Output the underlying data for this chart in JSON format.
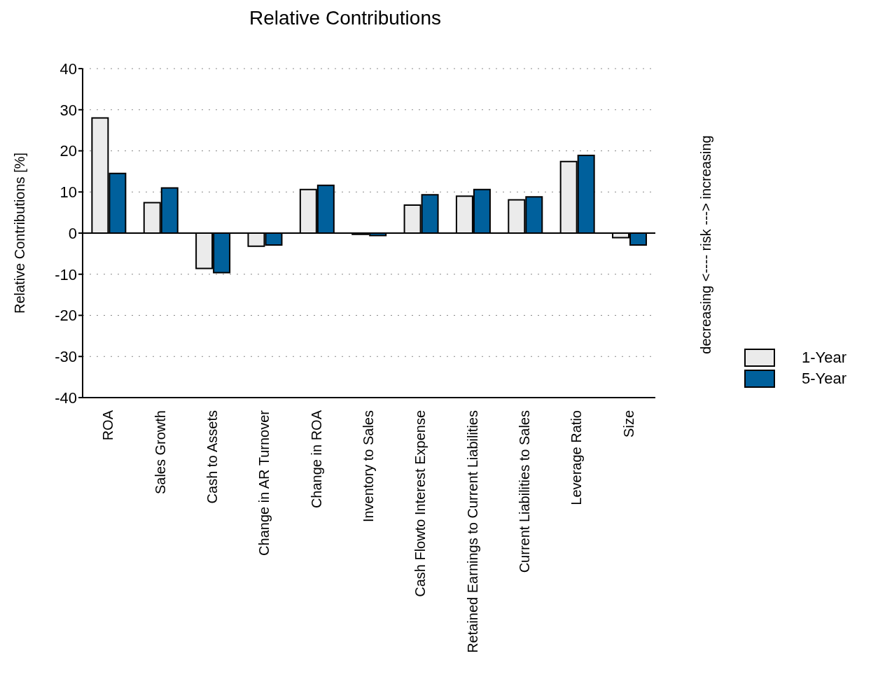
{
  "chart_data": {
    "type": "bar",
    "title": "Relative Contributions",
    "ylabel": "Relative Contributions [%]",
    "annotations": [
      "decreasing <---- risk ---> increasing"
    ],
    "categories": [
      "ROA",
      "Sales Growth",
      "Cash to Assets",
      "Change in AR Turnover",
      "Change in ROA",
      "Inventory to Sales",
      "Cash Flowto Interest Expense",
      "Retained Earnings to Current Liabilities",
      "Current Liabilities to Sales",
      "Leverage Ratio",
      "Size"
    ],
    "series": [
      {
        "name": "1-Year",
        "color": "#ebebeb",
        "values": [
          28,
          7.4,
          -8.6,
          -3.2,
          10.6,
          -0.3,
          6.8,
          9,
          8.1,
          17.4,
          -1.1
        ]
      },
      {
        "name": "5-Year",
        "color": "#00609c",
        "values": [
          14.5,
          11,
          -9.6,
          -2.9,
          11.6,
          -0.6,
          9.3,
          10.6,
          8.8,
          18.9,
          -2.9
        ]
      }
    ],
    "ylim": [
      -40,
      40
    ],
    "yticks": [
      -40,
      -30,
      -20,
      -10,
      0,
      10,
      20,
      30,
      40
    ],
    "grid": "y",
    "legend": "right"
  }
}
